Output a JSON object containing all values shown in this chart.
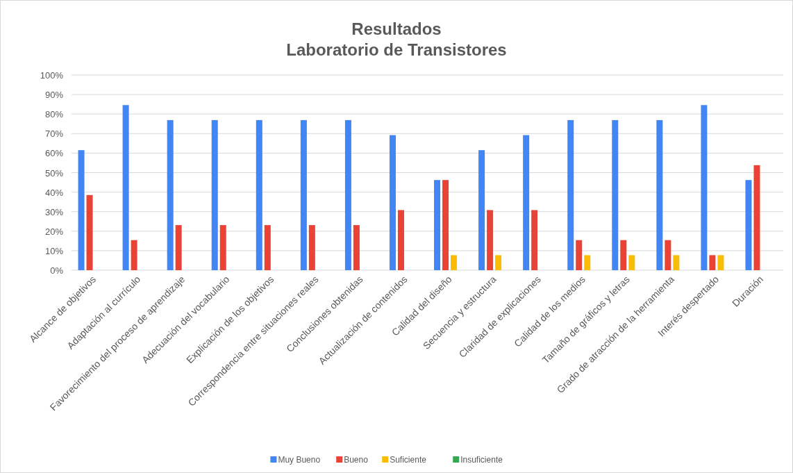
{
  "chart_data": {
    "type": "bar",
    "title": "Resultados\nLaboratorio de Transistores",
    "categories": [
      "Alcance de objetivos",
      "Adaptación al currículo",
      "Favorecimiento del proceso de aprendizaje",
      "Adecuación del vocabulario",
      "Explicación de los objetivos",
      "Correspondencia entre situaciones reales",
      "Conclusiones obtenidas",
      "Actualización de contenidos",
      "Calidad del diseño",
      "Secuencia y estructura",
      "Claridad de explicaciones",
      "Calidad de los medios",
      "Tamaño de gráficos y letras",
      "Grado de atracción de la herramienta",
      "Interés despertado",
      "Duración"
    ],
    "series": [
      {
        "name": "Muy Bueno",
        "color": "#4285f4",
        "values": [
          61.5,
          84.6,
          76.9,
          76.9,
          76.9,
          76.9,
          76.9,
          69.2,
          46.2,
          61.5,
          69.2,
          76.9,
          76.9,
          76.9,
          84.6,
          46.2
        ]
      },
      {
        "name": "Bueno",
        "color": "#ea4335",
        "values": [
          38.5,
          15.4,
          23.1,
          23.1,
          23.1,
          23.1,
          23.1,
          30.8,
          46.2,
          30.8,
          30.8,
          15.4,
          15.4,
          15.4,
          7.7,
          53.8
        ]
      },
      {
        "name": "Suficiente",
        "color": "#fbbc04",
        "values": [
          0,
          0,
          0,
          0,
          0,
          0,
          0,
          0,
          7.7,
          7.7,
          0,
          7.7,
          7.7,
          7.7,
          7.7,
          0
        ]
      },
      {
        "name": "Insuficiente",
        "color": "#34a853",
        "values": [
          0,
          0,
          0,
          0,
          0,
          0,
          0,
          0,
          0,
          0,
          0,
          0,
          0,
          0,
          0,
          0
        ]
      }
    ],
    "ylim": [
      0,
      100
    ],
    "yticks": [
      {
        "value": 0,
        "label": "0%"
      },
      {
        "value": 10,
        "label": "10%"
      },
      {
        "value": 20,
        "label": "20%"
      },
      {
        "value": 30,
        "label": "30%"
      },
      {
        "value": 40,
        "label": "40%"
      },
      {
        "value": 50,
        "label": "50%"
      },
      {
        "value": 60,
        "label": "60%"
      },
      {
        "value": 70,
        "label": "70%"
      },
      {
        "value": 80,
        "label": "80%"
      },
      {
        "value": 90,
        "label": "90%"
      },
      {
        "value": 100,
        "label": "100%"
      }
    ],
    "grid": "y",
    "legend": "bottom"
  }
}
